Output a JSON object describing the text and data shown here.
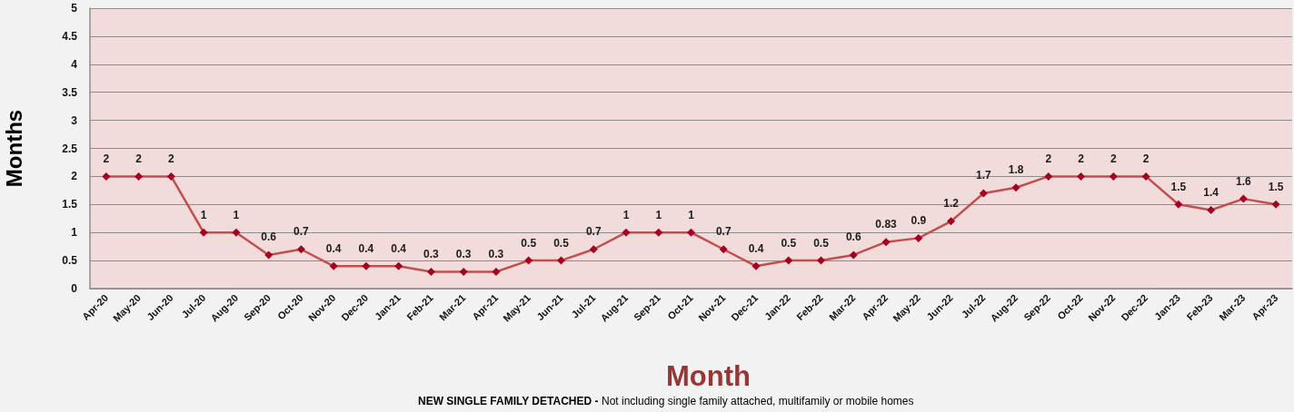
{
  "chart_data": {
    "type": "line",
    "ylabel": "Months",
    "xlabel": "Month",
    "annotations": [
      "NEW SINGLE FAMILY DETACHED -",
      "Not including single family attached, multifamily or mobile homes"
    ],
    "categories": [
      "Apr-20",
      "May-20",
      "Jun-20",
      "Jul-20",
      "Aug-20",
      "Sep-20",
      "Oct-20",
      "Nov-20",
      "Dec-20",
      "Jan-21",
      "Feb-21",
      "Mar-21",
      "Apr-21",
      "May-21",
      "Jun-21",
      "Jul-21",
      "Aug-21",
      "Sep-21",
      "Oct-21",
      "Nov-21",
      "Dec-21",
      "Jan-22",
      "Feb-22",
      "Mar-22",
      "Apr-22",
      "May-22",
      "Jun-22",
      "Jul-22",
      "Aug-22",
      "Sep-22",
      "Oct-22",
      "Nov-22",
      "Dec-22",
      "Jan-23",
      "Feb-23",
      "Mar-23",
      "Apr-23"
    ],
    "series": [
      {
        "color": "#c0504d",
        "values": [
          2,
          2,
          2,
          1,
          1,
          0.6,
          0.7,
          0.4,
          0.4,
          0.4,
          0.3,
          0.3,
          0.3,
          0.5,
          0.5,
          0.7,
          1,
          1,
          1,
          0.7,
          0.4,
          0.5,
          0.5,
          0.6,
          0.83,
          0.9,
          1.2,
          1.7,
          1.8,
          2,
          2,
          2,
          2,
          1.5,
          1.4,
          1.6,
          1.5
        ]
      }
    ],
    "ylim": [
      0,
      5
    ],
    "yticks": [
      0,
      0.5,
      1,
      1.5,
      2,
      2.5,
      3,
      3.5,
      4,
      4.5,
      5
    ],
    "grid": "y",
    "marker": "diamond",
    "line_style": "solid",
    "data_labels": true
  }
}
